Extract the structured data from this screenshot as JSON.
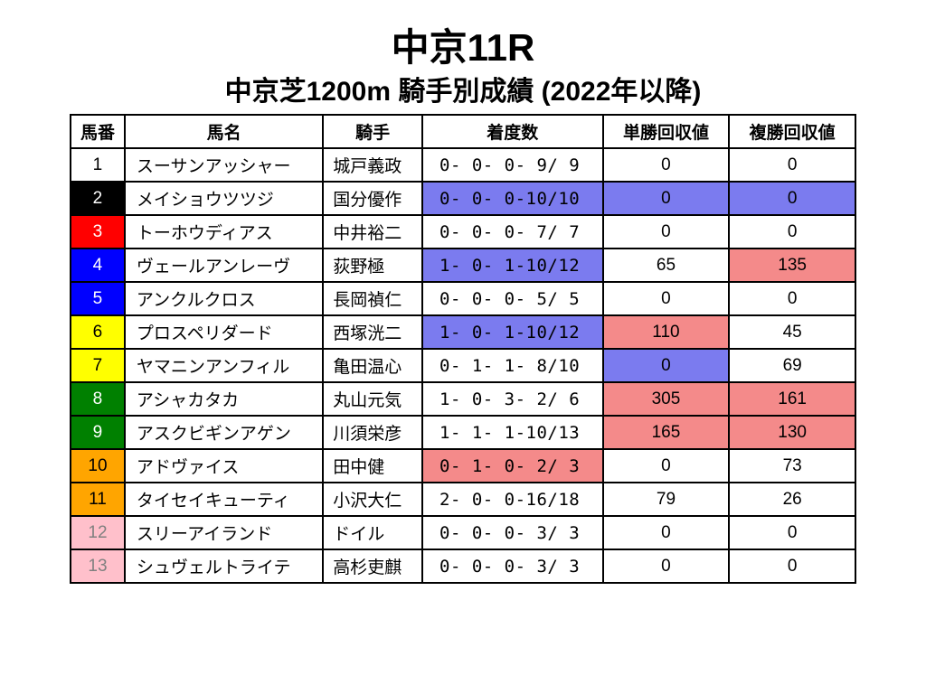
{
  "title_main": "中京11R",
  "title_sub": "中京芝1200m 騎手別成績 (2022年以降)",
  "columns": [
    "馬番",
    "馬名",
    "騎手",
    "着度数",
    "単勝回収値",
    "複勝回収値"
  ],
  "num_colors": {
    "white": {
      "bg": "#ffffff",
      "fg": "#000000"
    },
    "black": {
      "bg": "#000000",
      "fg": "#ffffff"
    },
    "red": {
      "bg": "#ff0000",
      "fg": "#ffffff"
    },
    "blue": {
      "bg": "#0000ff",
      "fg": "#ffffff"
    },
    "yellow": {
      "bg": "#ffff00",
      "fg": "#000000"
    },
    "green": {
      "bg": "#008000",
      "fg": "#ffffff"
    },
    "orange": {
      "bg": "#ffa500",
      "fg": "#000000"
    },
    "pink": {
      "bg": "#ffc0cb",
      "fg": "#808080"
    }
  },
  "highlight_colors": {
    "none": "#ffffff",
    "purple": "#7b7bef",
    "salmon": "#f48a8a"
  },
  "rows": [
    {
      "num": "1",
      "num_color": "white",
      "name": "スーサンアッシャー",
      "jockey": "城戸義政",
      "record": "0- 0- 0- 9/ 9",
      "record_hl": "none",
      "win": "0",
      "win_hl": "none",
      "place": "0",
      "place_hl": "none"
    },
    {
      "num": "2",
      "num_color": "black",
      "name": "メイショウツツジ",
      "jockey": "国分優作",
      "record": "0- 0- 0-10/10",
      "record_hl": "purple",
      "win": "0",
      "win_hl": "purple",
      "place": "0",
      "place_hl": "purple"
    },
    {
      "num": "3",
      "num_color": "red",
      "name": "トーホウディアス",
      "jockey": "中井裕二",
      "record": "0- 0- 0- 7/ 7",
      "record_hl": "none",
      "win": "0",
      "win_hl": "none",
      "place": "0",
      "place_hl": "none"
    },
    {
      "num": "4",
      "num_color": "blue",
      "name": "ヴェールアンレーヴ",
      "jockey": "荻野極",
      "record": "1- 0- 1-10/12",
      "record_hl": "purple",
      "win": "65",
      "win_hl": "none",
      "place": "135",
      "place_hl": "salmon"
    },
    {
      "num": "5",
      "num_color": "blue",
      "name": "アンクルクロス",
      "jockey": "長岡禎仁",
      "record": "0- 0- 0- 5/ 5",
      "record_hl": "none",
      "win": "0",
      "win_hl": "none",
      "place": "0",
      "place_hl": "none"
    },
    {
      "num": "6",
      "num_color": "yellow",
      "name": "プロスペリダード",
      "jockey": "西塚洸二",
      "record": "1- 0- 1-10/12",
      "record_hl": "purple",
      "win": "110",
      "win_hl": "salmon",
      "place": "45",
      "place_hl": "none"
    },
    {
      "num": "7",
      "num_color": "yellow",
      "name": "ヤマニンアンフィル",
      "jockey": "亀田温心",
      "record": "0- 1- 1- 8/10",
      "record_hl": "none",
      "win": "0",
      "win_hl": "purple",
      "place": "69",
      "place_hl": "none"
    },
    {
      "num": "8",
      "num_color": "green",
      "name": "アシャカタカ",
      "jockey": "丸山元気",
      "record": "1- 0- 3- 2/ 6",
      "record_hl": "none",
      "win": "305",
      "win_hl": "salmon",
      "place": "161",
      "place_hl": "salmon"
    },
    {
      "num": "9",
      "num_color": "green",
      "name": "アスクビギンアゲン",
      "jockey": "川須栄彦",
      "record": "1- 1- 1-10/13",
      "record_hl": "none",
      "win": "165",
      "win_hl": "salmon",
      "place": "130",
      "place_hl": "salmon"
    },
    {
      "num": "10",
      "num_color": "orange",
      "name": "アドヴァイス",
      "jockey": "田中健",
      "record": "0- 1- 0- 2/ 3",
      "record_hl": "salmon",
      "win": "0",
      "win_hl": "none",
      "place": "73",
      "place_hl": "none"
    },
    {
      "num": "11",
      "num_color": "orange",
      "name": "タイセイキューティ",
      "jockey": "小沢大仁",
      "record": "2- 0- 0-16/18",
      "record_hl": "none",
      "win": "79",
      "win_hl": "none",
      "place": "26",
      "place_hl": "none"
    },
    {
      "num": "12",
      "num_color": "pink",
      "name": "スリーアイランド",
      "jockey": "ドイル",
      "record": "0- 0- 0- 3/ 3",
      "record_hl": "none",
      "win": "0",
      "win_hl": "none",
      "place": "0",
      "place_hl": "none"
    },
    {
      "num": "13",
      "num_color": "pink",
      "name": "シュヴェルトライテ",
      "jockey": "高杉吏麒",
      "record": "0- 0- 0- 3/ 3",
      "record_hl": "none",
      "win": "0",
      "win_hl": "none",
      "place": "0",
      "place_hl": "none"
    }
  ]
}
